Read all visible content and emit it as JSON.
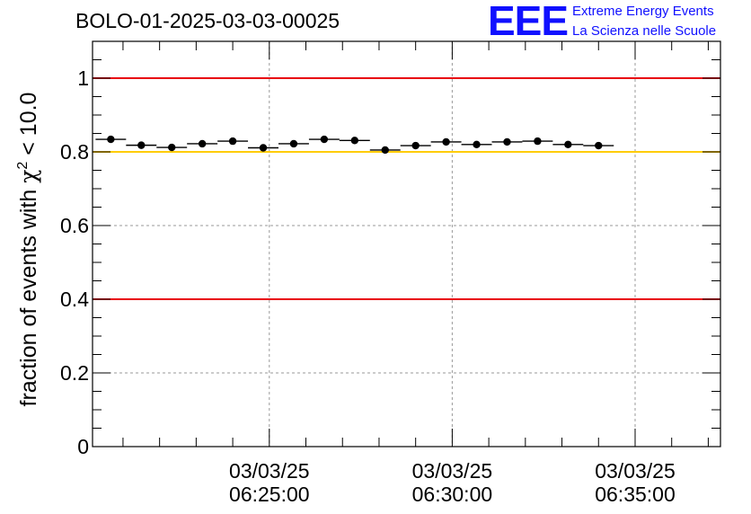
{
  "title": "BOLO-01-2025-03-03-00025",
  "logo": {
    "mark": "EEE",
    "line1": "Extreme Energy Events",
    "line2": "La Scienza nelle Scuole",
    "color": "#1010ff"
  },
  "chart_data": {
    "type": "scatter",
    "ylabel_prefix": "fraction of events with ",
    "ylabel_symbol": "χ",
    "ylabel_sup": "2",
    "ylabel_suffix": " < 10.0",
    "ylim": [
      0,
      1.1
    ],
    "y_ticks": [
      {
        "value": 0,
        "label": "0"
      },
      {
        "value": 0.2,
        "label": "0.2"
      },
      {
        "value": 0.4,
        "label": "0.4"
      },
      {
        "value": 0.6,
        "label": "0.6"
      },
      {
        "value": 0.8,
        "label": "0.8"
      },
      {
        "value": 1,
        "label": "1"
      }
    ],
    "xlim": [
      "06:20:10",
      "06:37:20"
    ],
    "x_ticks": [
      {
        "time": "06:25:00",
        "date": "03/03/25",
        "label": "06:25:00"
      },
      {
        "time": "06:30:00",
        "date": "03/03/25",
        "label": "06:30:00"
      },
      {
        "time": "06:35:00",
        "date": "03/03/25",
        "label": "06:35:00"
      }
    ],
    "grid": true,
    "reference_lines": [
      {
        "y": 1.0,
        "color": "#e8000b"
      },
      {
        "y": 0.8,
        "color": "#ffcc00"
      },
      {
        "y": 0.4,
        "color": "#e8000b"
      }
    ],
    "bin_width_s": 50,
    "points": [
      {
        "t": "06:20:40",
        "y": 0.834
      },
      {
        "t": "06:21:30",
        "y": 0.818
      },
      {
        "t": "06:22:20",
        "y": 0.812
      },
      {
        "t": "06:23:10",
        "y": 0.822
      },
      {
        "t": "06:24:00",
        "y": 0.829
      },
      {
        "t": "06:24:50",
        "y": 0.811
      },
      {
        "t": "06:25:40",
        "y": 0.822
      },
      {
        "t": "06:26:30",
        "y": 0.834
      },
      {
        "t": "06:27:20",
        "y": 0.831
      },
      {
        "t": "06:28:10",
        "y": 0.805
      },
      {
        "t": "06:29:00",
        "y": 0.817
      },
      {
        "t": "06:29:50",
        "y": 0.827
      },
      {
        "t": "06:30:40",
        "y": 0.82
      },
      {
        "t": "06:31:30",
        "y": 0.827
      },
      {
        "t": "06:32:20",
        "y": 0.829
      },
      {
        "t": "06:33:10",
        "y": 0.82
      },
      {
        "t": "06:34:00",
        "y": 0.817
      }
    ]
  }
}
